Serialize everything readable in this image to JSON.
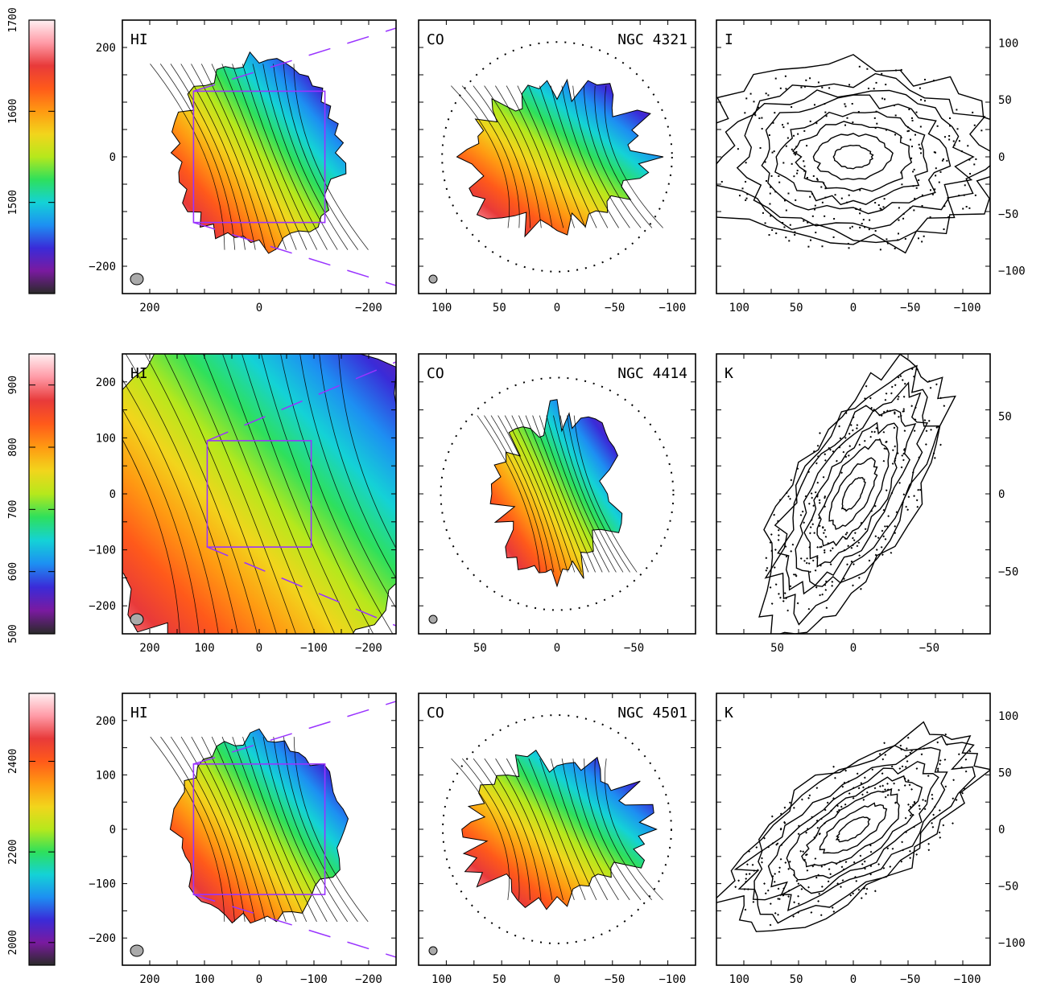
{
  "rows": [
    {
      "galaxy": "NGC 4321",
      "colorbar": {
        "ticks": [
          "1700",
          "1600",
          "1500"
        ],
        "values": [
          1700,
          1600,
          1500
        ],
        "range": [
          1400,
          1700
        ]
      },
      "panels": [
        {
          "label": "HI",
          "left_ticks": [
            "200",
            "0",
            "−200"
          ],
          "left_values": [
            200,
            0,
            -200
          ],
          "bottom_ticks": [
            "200",
            "0",
            "−200"
          ],
          "bottom_values": [
            200,
            0,
            -200
          ],
          "xrange": [
            250,
            -250
          ],
          "yrange": [
            -250,
            250
          ],
          "colormap": "velocity",
          "beam_color": "#aaaaaa"
        },
        {
          "label": "CO",
          "title": "NGC 4321",
          "bottom_ticks": [
            "100",
            "50",
            "0",
            "−50",
            "−100"
          ],
          "bottom_values": [
            100,
            50,
            0,
            -50,
            -100
          ],
          "xrange": [
            120,
            -120
          ],
          "yrange": [
            -120,
            120
          ],
          "colormap": "velocity",
          "beam_color": "#aaaaaa"
        },
        {
          "label": "I",
          "right_ticks": [
            "100",
            "50",
            "0",
            "−50",
            "−100"
          ],
          "right_values": [
            100,
            50,
            0,
            -50,
            -100
          ],
          "bottom_ticks": [
            "100",
            "50",
            "0",
            "−50",
            "−100"
          ],
          "bottom_values": [
            100,
            50,
            0,
            -50,
            -100
          ],
          "xrange": [
            120,
            -120
          ],
          "yrange": [
            -120,
            120
          ],
          "colormap": "contours"
        }
      ]
    },
    {
      "galaxy": "NGC 4414",
      "colorbar": {
        "ticks": [
          "900",
          "800",
          "700",
          "600",
          "500"
        ],
        "values": [
          900,
          800,
          700,
          600,
          500
        ],
        "range": [
          500,
          950
        ]
      },
      "panels": [
        {
          "label": "HI",
          "left_ticks": [
            "200",
            "100",
            "0",
            "−100",
            "−200"
          ],
          "left_values": [
            200,
            100,
            0,
            -100,
            -200
          ],
          "bottom_ticks": [
            "200",
            "100",
            "0",
            "−100",
            "−200"
          ],
          "bottom_values": [
            200,
            100,
            0,
            -100,
            -200
          ],
          "xrange": [
            250,
            -250
          ],
          "yrange": [
            -250,
            250
          ],
          "colormap": "velocity",
          "beam_color": "#aaaaaa"
        },
        {
          "label": "CO",
          "title": "NGC 4414",
          "bottom_ticks": [
            "50",
            "0",
            "−50"
          ],
          "bottom_values": [
            50,
            0,
            -50
          ],
          "xrange": [
            90,
            -90
          ],
          "yrange": [
            -90,
            90
          ],
          "colormap": "velocity",
          "beam_color": "#aaaaaa"
        },
        {
          "label": "K",
          "right_ticks": [
            "50",
            "0",
            "−50"
          ],
          "right_values": [
            50,
            0,
            -50
          ],
          "bottom_ticks": [
            "50",
            "0",
            "−50"
          ],
          "bottom_values": [
            50,
            0,
            -50
          ],
          "xrange": [
            90,
            -90
          ],
          "yrange": [
            -90,
            90
          ],
          "colormap": "contours"
        }
      ]
    },
    {
      "galaxy": "NGC 4501",
      "colorbar": {
        "ticks": [
          "2400",
          "2200",
          "2000"
        ],
        "values": [
          2400,
          2200,
          2000
        ],
        "range": [
          1950,
          2550
        ]
      },
      "panels": [
        {
          "label": "HI",
          "left_ticks": [
            "200",
            "100",
            "0",
            "−100",
            "−200"
          ],
          "left_values": [
            200,
            100,
            0,
            -100,
            -200
          ],
          "bottom_ticks": [
            "200",
            "100",
            "0",
            "−100",
            "−200"
          ],
          "bottom_values": [
            200,
            100,
            0,
            -100,
            -200
          ],
          "xrange": [
            250,
            -250
          ],
          "yrange": [
            -250,
            250
          ],
          "colormap": "velocity",
          "beam_color": "#aaaaaa"
        },
        {
          "label": "CO",
          "title": "NGC 4501",
          "bottom_ticks": [
            "100",
            "50",
            "0",
            "−50",
            "−100"
          ],
          "bottom_values": [
            100,
            50,
            0,
            -50,
            -100
          ],
          "xrange": [
            120,
            -120
          ],
          "yrange": [
            -120,
            120
          ],
          "colormap": "velocity",
          "beam_color": "#aaaaaa"
        },
        {
          "label": "K",
          "right_ticks": [
            "100",
            "50",
            "0",
            "−50",
            "−100"
          ],
          "right_values": [
            100,
            50,
            0,
            -50,
            -100
          ],
          "bottom_ticks": [
            "100",
            "50",
            "0",
            "−50",
            "−100"
          ],
          "bottom_values": [
            100,
            50,
            0,
            -50,
            -100
          ],
          "xrange": [
            120,
            -120
          ],
          "yrange": [
            -120,
            120
          ],
          "colormap": "contours"
        }
      ]
    }
  ],
  "colors": {
    "colormap": [
      "#2a2a2a",
      "#7a1aa0",
      "#3a2bd8",
      "#1d8ff2",
      "#14d2d6",
      "#2ee05c",
      "#b6e81c",
      "#f2d51c",
      "#ff9a12",
      "#ff5a1a",
      "#e83a3a",
      "#ff9aa6",
      "#fff0f2"
    ],
    "box": "#9933ff"
  }
}
